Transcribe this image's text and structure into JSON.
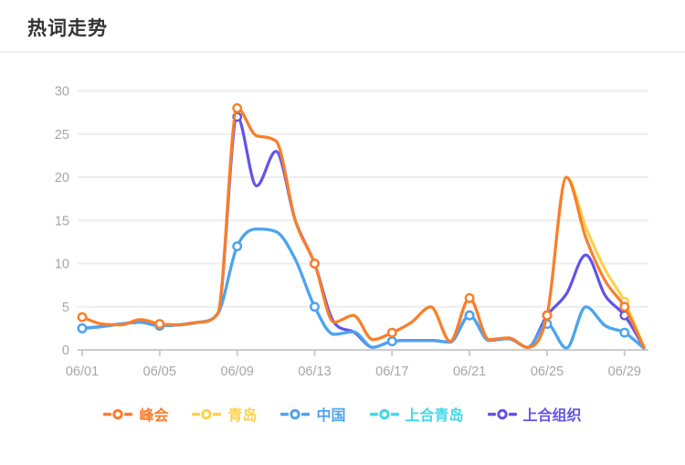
{
  "header": {
    "title": "热词走势"
  },
  "chart_data": {
    "type": "line",
    "title": "热词走势",
    "smooth": true,
    "grid": "horizontal-only",
    "legend_position": "bottom",
    "ylim": [
      0,
      30
    ],
    "yticks": [
      0,
      5,
      10,
      15,
      20,
      25,
      30
    ],
    "x": [
      "06/01",
      "06/02",
      "06/03",
      "06/04",
      "06/05",
      "06/06",
      "06/07",
      "06/08",
      "06/09",
      "06/10",
      "06/11",
      "06/12",
      "06/13",
      "06/14",
      "06/15",
      "06/16",
      "06/17",
      "06/18",
      "06/19",
      "06/20",
      "06/21",
      "06/22",
      "06/23",
      "06/24",
      "06/25",
      "06/26",
      "06/27",
      "06/28",
      "06/29",
      "06/30"
    ],
    "xtick_labels": [
      "06/01",
      "06/05",
      "06/09",
      "06/13",
      "06/17",
      "06/21",
      "06/25",
      "06/29"
    ],
    "marker_interval_days": 4,
    "series": [
      {
        "key": "summit",
        "name": "峰会",
        "color": "#F97E2C",
        "values": [
          3.8,
          3.0,
          2.9,
          3.5,
          3.0,
          2.9,
          3.2,
          4.2,
          28,
          24.8,
          24.2,
          15,
          10,
          3.2,
          4.0,
          1.2,
          2.0,
          3.2,
          5.0,
          1.0,
          6.0,
          1.2,
          1.4,
          0.3,
          4.0,
          20,
          13,
          8.0,
          5.0,
          0.3
        ]
      },
      {
        "key": "qingdao",
        "name": "青岛",
        "color": "#FCD24A",
        "values": [
          3.8,
          3.0,
          2.9,
          3.5,
          3.0,
          2.9,
          3.2,
          4.2,
          28,
          24.8,
          24.2,
          15,
          10,
          3.2,
          4.0,
          1.2,
          2.0,
          3.2,
          5.0,
          1.0,
          6.0,
          1.2,
          1.4,
          0.3,
          4.0,
          20,
          14.2,
          9.3,
          5.6,
          0.4
        ]
      },
      {
        "key": "china",
        "name": "中国",
        "color": "#4FA3EE",
        "values": [
          2.5,
          2.7,
          3.0,
          3.2,
          2.8,
          2.9,
          3.2,
          4.2,
          12,
          14,
          13.7,
          10.5,
          5.0,
          1.8,
          2.1,
          0.3,
          1.0,
          1.1,
          1.1,
          0.9,
          4.0,
          1.1,
          1.3,
          0.3,
          3.0,
          0.2,
          5.0,
          2.8,
          2.0,
          0.2
        ]
      },
      {
        "key": "sco-qingdao",
        "name": "上合青岛",
        "color": "#41D8E8",
        "values": [
          2.5,
          2.7,
          3.0,
          3.2,
          2.8,
          2.9,
          3.2,
          4.2,
          12,
          14,
          13.7,
          10.5,
          5.0,
          1.8,
          2.1,
          0.3,
          1.0,
          1.1,
          1.1,
          0.9,
          4.0,
          1.1,
          1.3,
          0.3,
          3.0,
          0.2,
          5.0,
          2.8,
          2.0,
          0.2
        ]
      },
      {
        "key": "sco-org",
        "name": "上合组织",
        "color": "#6254E6",
        "values": [
          2.5,
          2.7,
          3.0,
          3.2,
          2.8,
          2.9,
          3.2,
          4.2,
          27,
          19,
          23,
          15,
          10,
          3.2,
          2.1,
          0.3,
          1.0,
          1.1,
          1.1,
          0.9,
          4.0,
          1.1,
          1.3,
          0.3,
          4.0,
          6.5,
          11,
          6.3,
          4.0,
          0.3
        ]
      }
    ],
    "draw_order": [
      "sco-qingdao",
      "qingdao",
      "sco-org",
      "china",
      "summit"
    ],
    "colors": {
      "axis_text": "#A6A6A6",
      "grid_line": "#EDEDED",
      "axis_line": "#CCCCCC",
      "title_text": "#333333",
      "divider": "#EFEFEF",
      "background": "#FFFFFF"
    }
  }
}
